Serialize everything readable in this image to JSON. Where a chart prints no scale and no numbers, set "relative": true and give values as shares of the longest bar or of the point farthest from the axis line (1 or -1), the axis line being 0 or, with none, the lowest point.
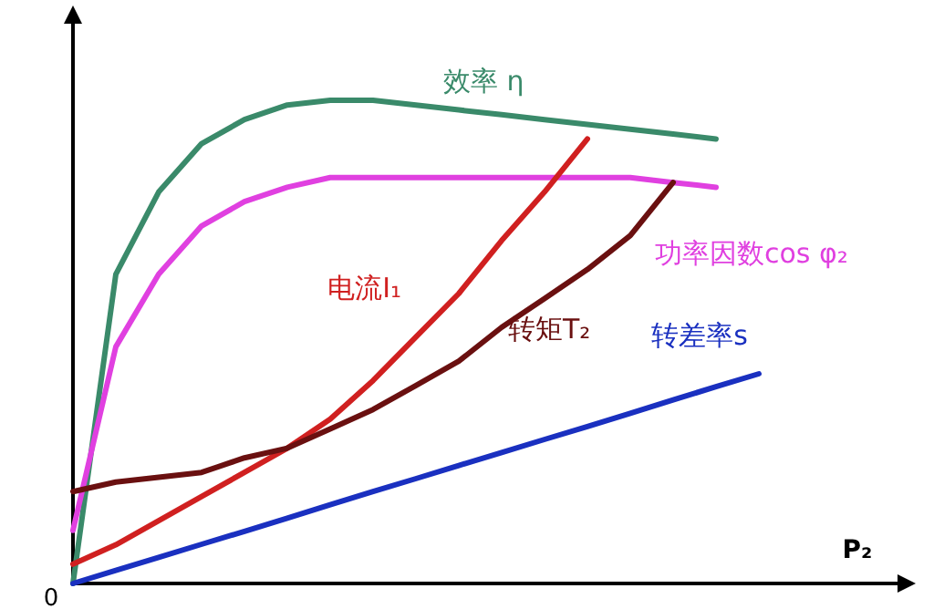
{
  "chart_data": {
    "type": "line",
    "relative": true,
    "xlabel": "P₂",
    "annotations": [
      "0"
    ],
    "categories": [
      null,
      null,
      null,
      null,
      null,
      null,
      null,
      null,
      null,
      null,
      null,
      null,
      null,
      null,
      null,
      null,
      null
    ],
    "series": [
      {
        "name": "效率 η",
        "color": "#3a8a6a",
        "values": [
          0,
          0.64,
          0.81,
          0.91,
          0.96,
          0.99,
          1.0,
          1.0,
          0.99,
          0.98,
          0.97,
          0.96,
          0.95,
          0.94,
          0.93,
          0.92,
          null
        ]
      },
      {
        "name": "功率因数cos φ₂",
        "color": "#e040e0",
        "values": [
          0.11,
          0.49,
          0.64,
          0.74,
          0.79,
          0.82,
          0.84,
          0.84,
          0.84,
          0.84,
          0.84,
          0.84,
          0.84,
          0.84,
          0.83,
          0.82,
          null
        ]
      },
      {
        "name": "电流I₁",
        "color": "#d02020",
        "values": [
          0.04,
          0.08,
          0.13,
          0.18,
          0.23,
          0.28,
          0.34,
          0.42,
          0.51,
          0.6,
          0.71,
          0.81,
          0.92,
          null,
          null,
          null,
          null
        ]
      },
      {
        "name": "转矩T₂",
        "color": "#6a1010",
        "values": [
          0.19,
          0.21,
          0.22,
          0.23,
          0.26,
          0.28,
          0.32,
          0.36,
          0.41,
          0.46,
          0.53,
          0.59,
          0.65,
          0.72,
          0.83,
          null,
          null
        ]
      },
      {
        "name": "转差率s",
        "color": "#1a30c0",
        "values": [
          0,
          0.027,
          0.054,
          0.081,
          0.108,
          0.135,
          0.163,
          0.19,
          0.217,
          0.244,
          0.271,
          0.298,
          0.325,
          0.352,
          0.38,
          0.407,
          0.434
        ]
      }
    ]
  }
}
